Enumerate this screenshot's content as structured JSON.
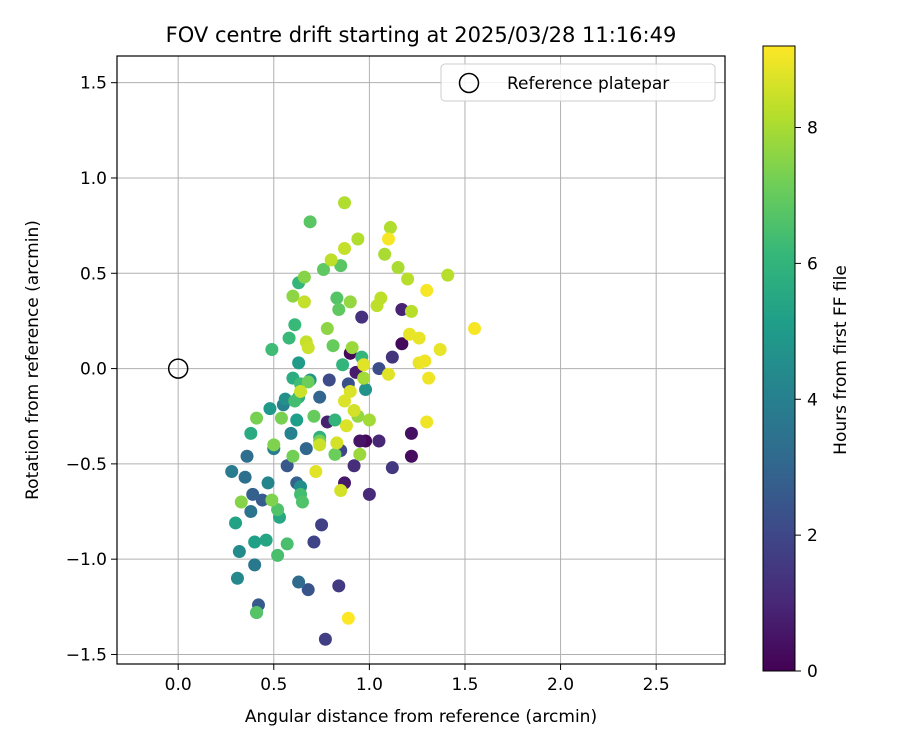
{
  "chart_data": {
    "type": "scatter",
    "title": "FOV centre drift starting at 2025/03/28 11:16:49",
    "xlabel": "Angular distance from reference (arcmin)",
    "ylabel": "Rotation from reference (arcmin)",
    "xlim": [
      -0.32,
      2.86
    ],
    "ylim": [
      -1.55,
      1.64
    ],
    "xticks": [
      0.0,
      0.5,
      1.0,
      1.5,
      2.0,
      2.5
    ],
    "xtick_labels": [
      "0.0",
      "0.5",
      "1.0",
      "1.5",
      "2.0",
      "2.5"
    ],
    "yticks": [
      -1.5,
      -1.0,
      -0.5,
      0.0,
      0.5,
      1.0,
      1.5
    ],
    "ytick_labels": [
      "−1.5",
      "−1.0",
      "−0.5",
      "0.0",
      "0.5",
      "1.0",
      "1.5"
    ],
    "grid": true,
    "legend": {
      "placement": "top-right",
      "entries": [
        "Reference platepar"
      ]
    },
    "reference_point": {
      "x": 0.0,
      "y": 0.0,
      "marker": "open-circle"
    },
    "colorbar": {
      "label": "Hours from first FF file",
      "min": 0,
      "max": 9.2,
      "ticks": [
        0,
        2,
        4,
        6,
        8
      ],
      "tick_labels": [
        "0",
        "2",
        "4",
        "6",
        "8"
      ],
      "colormap": "viridis",
      "stops": [
        "#440154",
        "#482878",
        "#3e4989",
        "#31688e",
        "#26828e",
        "#1f9e89",
        "#35b779",
        "#6ece58",
        "#b5de2b",
        "#fde725"
      ]
    },
    "series": [
      {
        "points": [
          {
            "x": 0.98,
            "y": -0.38,
            "t": 0.2
          },
          {
            "x": 1.17,
            "y": 0.13,
            "t": 0.2
          },
          {
            "x": 0.9,
            "y": 0.08,
            "t": 0.2
          },
          {
            "x": 1.22,
            "y": -0.46,
            "t": 0.3
          },
          {
            "x": 1.22,
            "y": -0.34,
            "t": 0.4
          },
          {
            "x": 0.95,
            "y": -0.38,
            "t": 0.5
          },
          {
            "x": 0.87,
            "y": -0.6,
            "t": 0.6
          },
          {
            "x": 0.93,
            "y": -0.02,
            "t": 0.7
          },
          {
            "x": 0.78,
            "y": -0.28,
            "t": 0.8
          },
          {
            "x": 1.17,
            "y": 0.31,
            "t": 0.9
          },
          {
            "x": 1.05,
            "y": -0.38,
            "t": 1.0
          },
          {
            "x": 1.0,
            "y": -0.66,
            "t": 1.1
          },
          {
            "x": 0.92,
            "y": -0.51,
            "t": 1.2
          },
          {
            "x": 0.96,
            "y": 0.27,
            "t": 1.3
          },
          {
            "x": 1.12,
            "y": 0.06,
            "t": 1.4
          },
          {
            "x": 1.12,
            "y": -0.52,
            "t": 1.5
          },
          {
            "x": 0.84,
            "y": -1.14,
            "t": 1.6
          },
          {
            "x": 0.77,
            "y": -1.42,
            "t": 1.7
          },
          {
            "x": 0.75,
            "y": -0.82,
            "t": 1.8
          },
          {
            "x": 0.71,
            "y": -0.91,
            "t": 1.9
          },
          {
            "x": 0.85,
            "y": -0.43,
            "t": 2.0
          },
          {
            "x": 0.79,
            "y": -0.06,
            "t": 2.1
          },
          {
            "x": 1.05,
            "y": 0.0,
            "t": 2.2
          },
          {
            "x": 0.89,
            "y": -0.08,
            "t": 2.3
          },
          {
            "x": 0.68,
            "y": -1.16,
            "t": 2.4
          },
          {
            "x": 0.57,
            "y": -0.51,
            "t": 2.5
          },
          {
            "x": 0.42,
            "y": -1.24,
            "t": 2.6
          },
          {
            "x": 0.44,
            "y": -0.69,
            "t": 2.7
          },
          {
            "x": 0.39,
            "y": -0.66,
            "t": 2.8
          },
          {
            "x": 0.62,
            "y": -0.6,
            "t": 2.9
          },
          {
            "x": 0.74,
            "y": -0.15,
            "t": 3.0
          },
          {
            "x": 0.67,
            "y": -0.42,
            "t": 3.1
          },
          {
            "x": 0.63,
            "y": -1.12,
            "t": 3.2
          },
          {
            "x": 0.36,
            "y": -0.46,
            "t": 3.3
          },
          {
            "x": 0.35,
            "y": -0.57,
            "t": 3.4
          },
          {
            "x": 0.38,
            "y": -0.75,
            "t": 3.5
          },
          {
            "x": 0.41,
            "y": -1.28,
            "t": 3.6
          },
          {
            "x": 0.4,
            "y": -1.03,
            "t": 3.7
          },
          {
            "x": 0.28,
            "y": -0.54,
            "t": 3.8
          },
          {
            "x": 0.5,
            "y": -0.42,
            "t": 3.9
          },
          {
            "x": 0.55,
            "y": -0.19,
            "t": 4.0
          },
          {
            "x": 0.59,
            "y": -0.34,
            "t": 4.1
          },
          {
            "x": 0.47,
            "y": -0.6,
            "t": 4.2
          },
          {
            "x": 0.31,
            "y": -1.1,
            "t": 4.3
          },
          {
            "x": 0.32,
            "y": -0.96,
            "t": 4.4
          },
          {
            "x": 0.64,
            "y": -0.62,
            "t": 4.5
          },
          {
            "x": 0.56,
            "y": -0.16,
            "t": 4.6
          },
          {
            "x": 0.98,
            "y": -0.11,
            "t": 4.7
          },
          {
            "x": 0.69,
            "y": -0.06,
            "t": 4.8
          },
          {
            "x": 0.48,
            "y": -0.21,
            "t": 4.9
          },
          {
            "x": 0.63,
            "y": 0.03,
            "t": 5.0
          },
          {
            "x": 0.62,
            "y": -0.27,
            "t": 5.1
          },
          {
            "x": 0.4,
            "y": -0.91,
            "t": 5.2
          },
          {
            "x": 0.3,
            "y": -0.81,
            "t": 5.3
          },
          {
            "x": 0.46,
            "y": -0.9,
            "t": 5.4
          },
          {
            "x": 0.53,
            "y": -0.78,
            "t": 5.5
          },
          {
            "x": 0.38,
            "y": -0.34,
            "t": 5.6
          },
          {
            "x": 0.6,
            "y": -0.05,
            "t": 5.7
          },
          {
            "x": 0.63,
            "y": -0.15,
            "t": 5.8
          },
          {
            "x": 0.74,
            "y": -0.36,
            "t": 5.9
          },
          {
            "x": 0.82,
            "y": -0.27,
            "t": 6.0
          },
          {
            "x": 0.86,
            "y": 0.02,
            "t": 6.0
          },
          {
            "x": 0.96,
            "y": 0.06,
            "t": 6.1
          },
          {
            "x": 0.63,
            "y": 0.45,
            "t": 6.1
          },
          {
            "x": 0.58,
            "y": 0.16,
            "t": 6.2
          },
          {
            "x": 0.61,
            "y": 0.23,
            "t": 6.2
          },
          {
            "x": 0.49,
            "y": 0.1,
            "t": 6.3
          },
          {
            "x": 0.64,
            "y": -0.08,
            "t": 6.3
          },
          {
            "x": 0.61,
            "y": -0.17,
            "t": 6.4
          },
          {
            "x": 0.64,
            "y": -0.66,
            "t": 6.4
          },
          {
            "x": 0.57,
            "y": -0.92,
            "t": 6.5
          },
          {
            "x": 0.52,
            "y": -0.98,
            "t": 6.5
          },
          {
            "x": 0.52,
            "y": -0.74,
            "t": 6.6
          },
          {
            "x": 0.65,
            "y": -0.7,
            "t": 6.6
          },
          {
            "x": 0.41,
            "y": -1.28,
            "t": 6.7
          },
          {
            "x": 0.83,
            "y": 0.37,
            "t": 6.7
          },
          {
            "x": 0.85,
            "y": 0.54,
            "t": 6.8
          },
          {
            "x": 0.69,
            "y": 0.77,
            "t": 6.8
          },
          {
            "x": 0.76,
            "y": 0.52,
            "t": 6.9
          },
          {
            "x": 0.84,
            "y": 0.31,
            "t": 6.9
          },
          {
            "x": 0.81,
            "y": 0.12,
            "t": 7.0
          },
          {
            "x": 0.71,
            "y": -0.25,
            "t": 7.0
          },
          {
            "x": 0.68,
            "y": -0.07,
            "t": 7.1
          },
          {
            "x": 0.82,
            "y": -0.45,
            "t": 7.1
          },
          {
            "x": 0.74,
            "y": -0.38,
            "t": 7.2
          },
          {
            "x": 0.6,
            "y": -0.46,
            "t": 7.2
          },
          {
            "x": 0.54,
            "y": -0.26,
            "t": 7.3
          },
          {
            "x": 0.41,
            "y": -0.26,
            "t": 7.3
          },
          {
            "x": 0.5,
            "y": -0.4,
            "t": 7.4
          },
          {
            "x": 0.49,
            "y": -0.69,
            "t": 7.4
          },
          {
            "x": 0.33,
            "y": -0.7,
            "t": 7.5
          },
          {
            "x": 0.66,
            "y": 0.48,
            "t": 7.5
          },
          {
            "x": 0.78,
            "y": 0.21,
            "t": 7.6
          },
          {
            "x": 0.6,
            "y": 0.38,
            "t": 7.6
          },
          {
            "x": 0.9,
            "y": 0.35,
            "t": 7.7
          },
          {
            "x": 0.94,
            "y": -0.25,
            "t": 7.7
          },
          {
            "x": 0.95,
            "y": -0.45,
            "t": 7.8
          },
          {
            "x": 0.91,
            "y": 0.11,
            "t": 7.8
          },
          {
            "x": 0.97,
            "y": -0.05,
            "t": 7.9
          },
          {
            "x": 1.0,
            "y": -0.27,
            "t": 7.9
          },
          {
            "x": 1.15,
            "y": 0.53,
            "t": 8.0
          },
          {
            "x": 1.08,
            "y": 0.6,
            "t": 8.0
          },
          {
            "x": 0.87,
            "y": 0.87,
            "t": 8.1
          },
          {
            "x": 0.94,
            "y": 0.68,
            "t": 8.1
          },
          {
            "x": 1.11,
            "y": 0.74,
            "t": 8.1
          },
          {
            "x": 1.2,
            "y": 0.47,
            "t": 8.2
          },
          {
            "x": 1.22,
            "y": 0.3,
            "t": 8.2
          },
          {
            "x": 1.41,
            "y": 0.49,
            "t": 8.2
          },
          {
            "x": 1.06,
            "y": 0.37,
            "t": 8.3
          },
          {
            "x": 1.04,
            "y": 0.33,
            "t": 8.3
          },
          {
            "x": 0.8,
            "y": 0.57,
            "t": 8.3
          },
          {
            "x": 0.87,
            "y": 0.63,
            "t": 8.4
          },
          {
            "x": 0.66,
            "y": 0.35,
            "t": 8.4
          },
          {
            "x": 0.67,
            "y": 0.14,
            "t": 8.4
          },
          {
            "x": 0.68,
            "y": 0.11,
            "t": 8.5
          },
          {
            "x": 0.64,
            "y": -0.12,
            "t": 8.5
          },
          {
            "x": 0.74,
            "y": -0.4,
            "t": 8.5
          },
          {
            "x": 0.83,
            "y": -0.39,
            "t": 8.6
          },
          {
            "x": 0.85,
            "y": -0.64,
            "t": 8.6
          },
          {
            "x": 0.92,
            "y": -0.22,
            "t": 8.6
          },
          {
            "x": 0.9,
            "y": -0.12,
            "t": 8.7
          },
          {
            "x": 0.88,
            "y": -0.3,
            "t": 8.7
          },
          {
            "x": 0.87,
            "y": -0.17,
            "t": 8.7
          },
          {
            "x": 0.72,
            "y": -0.54,
            "t": 8.8
          },
          {
            "x": 0.97,
            "y": 0.02,
            "t": 8.8
          },
          {
            "x": 1.1,
            "y": -0.03,
            "t": 8.8
          },
          {
            "x": 1.21,
            "y": 0.18,
            "t": 8.9
          },
          {
            "x": 1.26,
            "y": 0.16,
            "t": 8.9
          },
          {
            "x": 1.37,
            "y": 0.1,
            "t": 8.9
          },
          {
            "x": 1.26,
            "y": 0.03,
            "t": 8.9
          },
          {
            "x": 1.3,
            "y": -0.28,
            "t": 9.0
          },
          {
            "x": 1.31,
            "y": -0.05,
            "t": 9.0
          },
          {
            "x": 1.29,
            "y": 0.04,
            "t": 9.0
          },
          {
            "x": 1.3,
            "y": 0.41,
            "t": 9.1
          },
          {
            "x": 1.55,
            "y": 0.21,
            "t": 9.1
          },
          {
            "x": 1.1,
            "y": 0.68,
            "t": 9.1
          },
          {
            "x": 0.89,
            "y": -1.31,
            "t": 9.2
          }
        ]
      }
    ]
  }
}
